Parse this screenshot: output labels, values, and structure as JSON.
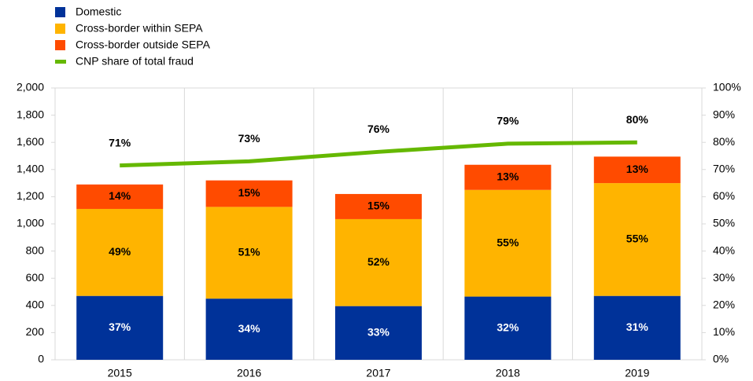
{
  "chart_data": {
    "type": "bar",
    "categories": [
      "2015",
      "2016",
      "2017",
      "2018",
      "2019"
    ],
    "series": [
      {
        "name": "Domestic",
        "color": "#003299",
        "values": [
          470,
          450,
          395,
          465,
          470
        ],
        "share_labels": [
          "37%",
          "34%",
          "33%",
          "32%",
          "31%"
        ]
      },
      {
        "name": "Cross-border within SEPA",
        "color": "#ffb400",
        "values": [
          640,
          675,
          640,
          785,
          830
        ],
        "share_labels": [
          "49%",
          "51%",
          "52%",
          "55%",
          "55%"
        ]
      },
      {
        "name": "Cross-border outside SEPA",
        "color": "#ff4b00",
        "values": [
          180,
          195,
          185,
          185,
          195
        ],
        "share_labels": [
          "14%",
          "15%",
          "15%",
          "13%",
          "13%"
        ]
      },
      {
        "name": "CNP share of total fraud",
        "color": "#65b800",
        "type": "line",
        "axis": "y2",
        "values": [
          71.5,
          73,
          76.5,
          79.5,
          80
        ],
        "value_labels": [
          "71%",
          "73%",
          "76%",
          "79%",
          "80%"
        ]
      }
    ],
    "stacked": true,
    "ylim": [
      0,
      2000
    ],
    "yticks": [
      0,
      200,
      400,
      600,
      800,
      {
        "value": 1000,
        "label": "1,000"
      },
      {
        "value": 1200,
        "label": "1,200"
      },
      {
        "value": 1400,
        "label": "1,400"
      },
      {
        "value": 1600,
        "label": "1,600"
      },
      {
        "value": 1800,
        "label": "1,800"
      },
      {
        "value": 2000,
        "label": "2,000"
      }
    ],
    "y2lim": [
      0,
      100
    ],
    "y2ticks": [
      {
        "value": 0,
        "label": "0%"
      },
      {
        "value": 10,
        "label": "10%"
      },
      {
        "value": 20,
        "label": "20%"
      },
      {
        "value": 30,
        "label": "30%"
      },
      {
        "value": 40,
        "label": "40%"
      },
      {
        "value": 50,
        "label": "50%"
      },
      {
        "value": 60,
        "label": "60%"
      },
      {
        "value": 70,
        "label": "70%"
      },
      {
        "value": 80,
        "label": "80%"
      },
      {
        "value": 90,
        "label": "90%"
      },
      {
        "value": 100,
        "label": "100%"
      }
    ],
    "legend": "top-left"
  }
}
